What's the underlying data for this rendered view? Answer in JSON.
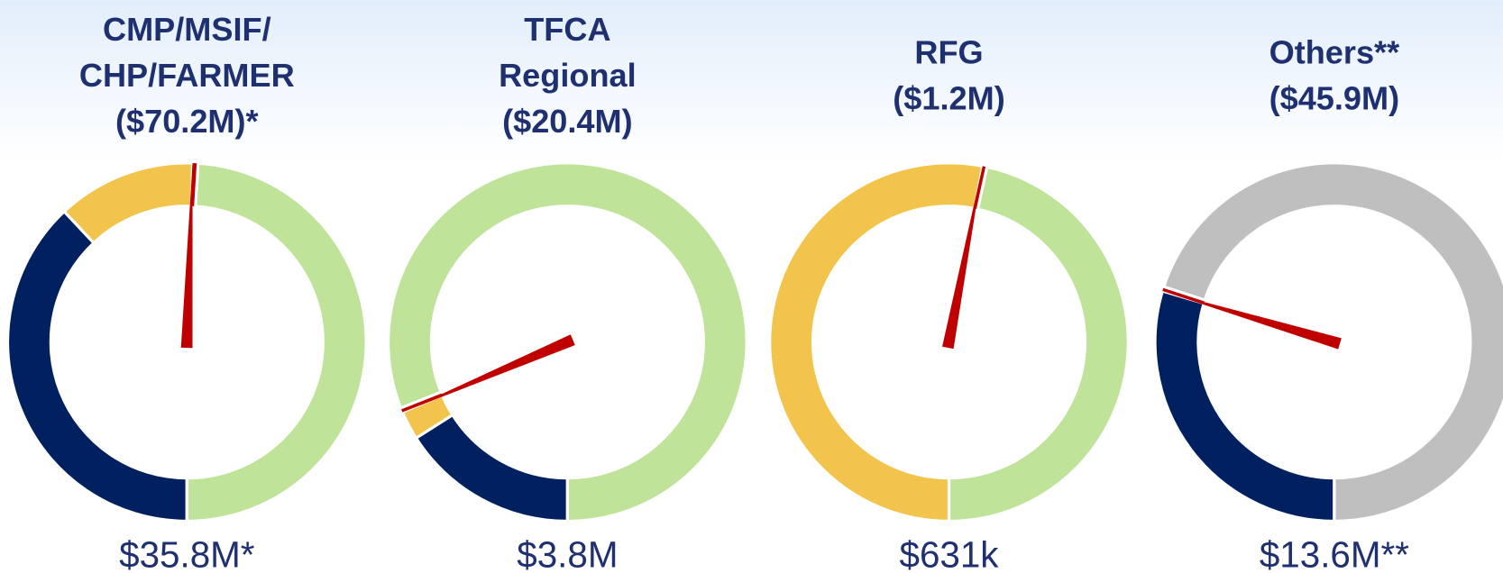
{
  "chart_data": [
    {
      "type": "donut",
      "title": [
        "CMP/MSIF/",
        "CHP/FARMER",
        "($70.2M)*"
      ],
      "label": "$35.8M*",
      "values": [
        38,
        12.5,
        0.5,
        49
      ],
      "colors": [
        "#002060",
        "#f2c44b",
        "#c00000",
        "#c0e39a"
      ]
    },
    {
      "type": "donut",
      "title": [
        "TFCA",
        "Regional",
        "($20.4M)"
      ],
      "label": "$3.8M",
      "values": [
        16,
        2.6,
        0.4,
        81
      ],
      "colors": [
        "#002060",
        "#f2c44b",
        "#c00000",
        "#c0e39a"
      ]
    },
    {
      "type": "donut",
      "title": [
        "RFG",
        "($1.2M)"
      ],
      "label": "$631k",
      "values": [
        0,
        53,
        0.4,
        46.6
      ],
      "colors": [
        "#002060",
        "#f2c44b",
        "#c00000",
        "#c0e39a"
      ]
    },
    {
      "type": "donut",
      "title": [
        "Others**",
        "($45.9M)"
      ],
      "label": "$13.6M**",
      "values": [
        29.6,
        0,
        0.4,
        70
      ],
      "colors": [
        "#002060",
        "#f2c44b",
        "#c00000",
        "#bfbfbf"
      ]
    }
  ]
}
